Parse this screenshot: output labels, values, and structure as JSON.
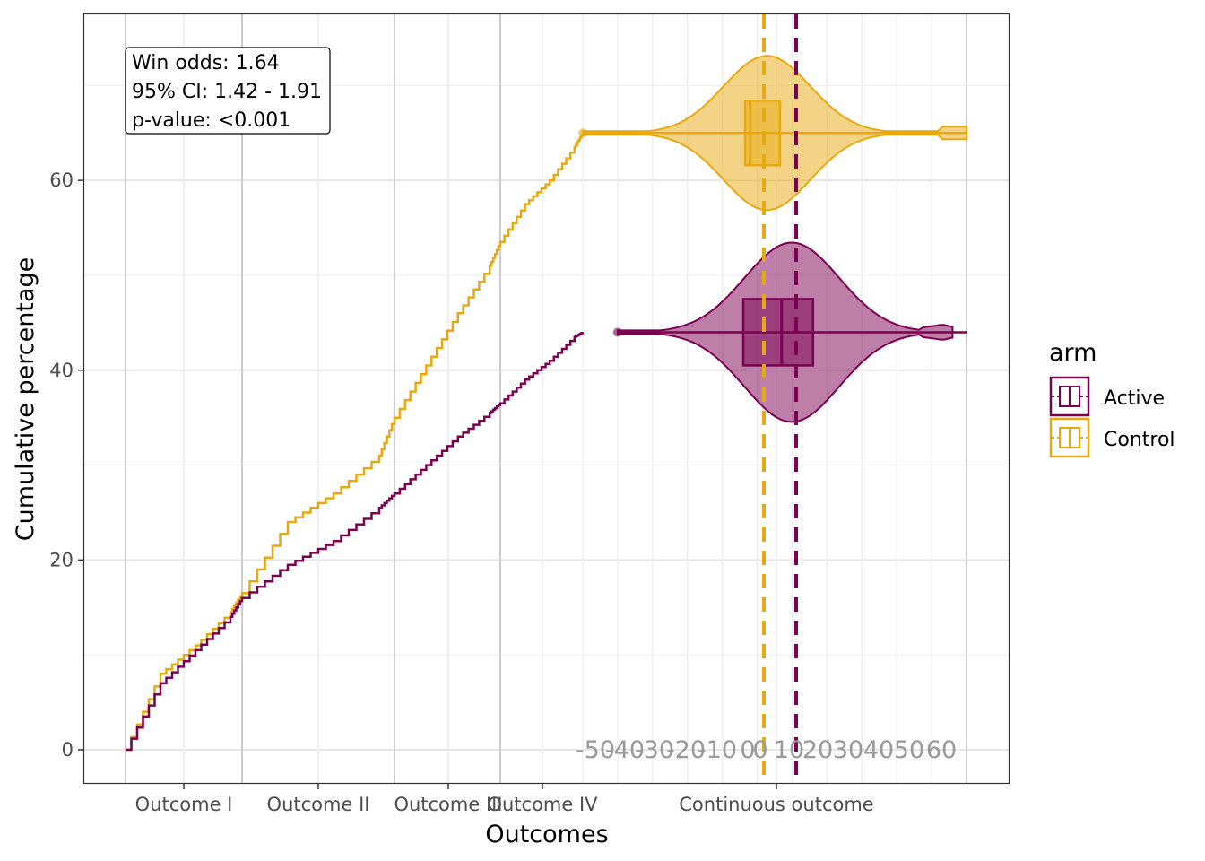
{
  "chart_data": {
    "type": "line",
    "title": "",
    "xlabel": "Outcomes",
    "ylabel": "Cumulative percentage",
    "ylim": [
      -3.5,
      77.5
    ],
    "yticks": [
      0,
      20,
      40,
      60
    ],
    "grid": true,
    "x_sections": [
      "Outcome I",
      "Outcome II",
      "Outcome III",
      "Outcome IV",
      "Continuous outcome"
    ],
    "continuous_ticks": [
      "-50",
      "-40",
      "-30",
      "-20",
      "-10",
      "0",
      "0",
      "10",
      "20",
      "30",
      "40",
      "50",
      "60"
    ],
    "continuous_range": [
      -50,
      60
    ],
    "annotation": [
      "Win odds: 1.64",
      "95% CI: 1.42 - 1.91",
      "p-value: <0.001"
    ],
    "legend": {
      "title": "arm",
      "position": "right",
      "entries": [
        "Active",
        "Control"
      ]
    },
    "colors": {
      "Active": "#7B0051",
      "Control": "#E8A90E"
    },
    "series": [
      {
        "name": "Control",
        "cumulative_x": [
          0,
          0.3,
          0.6,
          0.9,
          1.0,
          1.3,
          1.6,
          1.9,
          2.0,
          2.3,
          2.6,
          2.9,
          3.0,
          3.3,
          3.6,
          3.9,
          4.0
        ],
        "cumulative_y": [
          0,
          8.0,
          11.0,
          14.5,
          16.5,
          24.0,
          27.0,
          31.0,
          35.0,
          40.5,
          46.0,
          51.0,
          53.5,
          57.5,
          60.0,
          63.5,
          65.0
        ],
        "violin_y": 65.0,
        "box": {
          "q1": -3.5,
          "median": -2.0,
          "q3": 6.5
        },
        "range": [
          -50,
          60
        ],
        "mean_line": -2.0
      },
      {
        "name": "Active",
        "cumulative_x": [
          0,
          0.3,
          0.6,
          0.9,
          1.0,
          1.3,
          1.6,
          1.9,
          2.0,
          2.3,
          2.6,
          2.9,
          3.0,
          3.3,
          3.6,
          3.9,
          4.0
        ],
        "cumulative_y": [
          0,
          7.0,
          10.5,
          14.0,
          16.0,
          19.5,
          22.0,
          25.5,
          27.0,
          30.0,
          33.0,
          35.5,
          36.5,
          39.0,
          41.0,
          43.5,
          44.0
        ],
        "violin_y": 44.0,
        "box": {
          "q1": -4.0,
          "median": 7.0,
          "q3": 16.0
        },
        "range": [
          -40,
          60
        ],
        "mean_line": 7.0
      }
    ]
  }
}
